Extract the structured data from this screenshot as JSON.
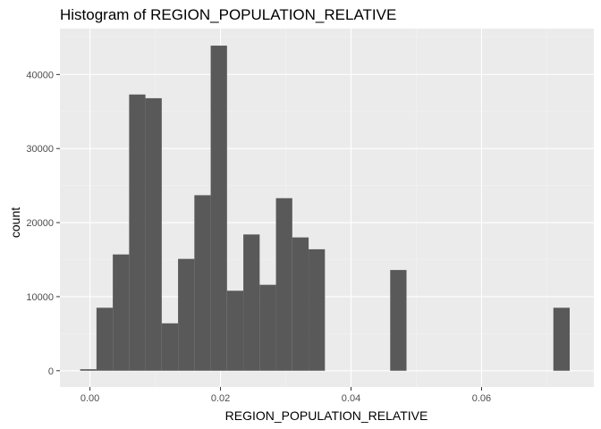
{
  "chart_data": {
    "type": "bar",
    "title": "Histogram of REGION_POPULATION_RELATIVE",
    "xlabel": "REGION_POPULATION_RELATIVE",
    "ylabel": "count",
    "xlim": [
      -0.0046,
      0.0772
    ],
    "ylim": [
      -2200,
      46200
    ],
    "x_ticks": [
      0.0,
      0.02,
      0.04,
      0.06
    ],
    "x_tick_labels": [
      "0.00",
      "0.02",
      "0.04",
      "0.06"
    ],
    "y_ticks": [
      0,
      10000,
      20000,
      30000,
      40000
    ],
    "y_tick_labels": [
      "0",
      "10000",
      "20000",
      "30000",
      "40000"
    ],
    "grid": true,
    "bin_width": 0.0025,
    "bins": [
      {
        "x0": -0.0015,
        "x1": 0.001,
        "count": 200
      },
      {
        "x0": 0.001,
        "x1": 0.0035,
        "count": 8500
      },
      {
        "x0": 0.0035,
        "x1": 0.006,
        "count": 15700
      },
      {
        "x0": 0.006,
        "x1": 0.0085,
        "count": 37300
      },
      {
        "x0": 0.0085,
        "x1": 0.011,
        "count": 36800
      },
      {
        "x0": 0.011,
        "x1": 0.0135,
        "count": 6400
      },
      {
        "x0": 0.0135,
        "x1": 0.016,
        "count": 15100
      },
      {
        "x0": 0.016,
        "x1": 0.0185,
        "count": 23700
      },
      {
        "x0": 0.0185,
        "x1": 0.021,
        "count": 43900
      },
      {
        "x0": 0.021,
        "x1": 0.0235,
        "count": 10800
      },
      {
        "x0": 0.0235,
        "x1": 0.026,
        "count": 18400
      },
      {
        "x0": 0.026,
        "x1": 0.0285,
        "count": 11600
      },
      {
        "x0": 0.0285,
        "x1": 0.031,
        "count": 23300
      },
      {
        "x0": 0.031,
        "x1": 0.0335,
        "count": 18000
      },
      {
        "x0": 0.0335,
        "x1": 0.036,
        "count": 16400
      },
      {
        "x0": 0.046,
        "x1": 0.0485,
        "count": 13600
      },
      {
        "x0": 0.071,
        "x1": 0.0735,
        "count": 8500
      }
    ],
    "colors": {
      "panel": "#ebebeb",
      "grid_major": "#ffffff",
      "grid_minor": "#f2f2f2",
      "bar": "#595959",
      "tick": "#333333"
    }
  }
}
